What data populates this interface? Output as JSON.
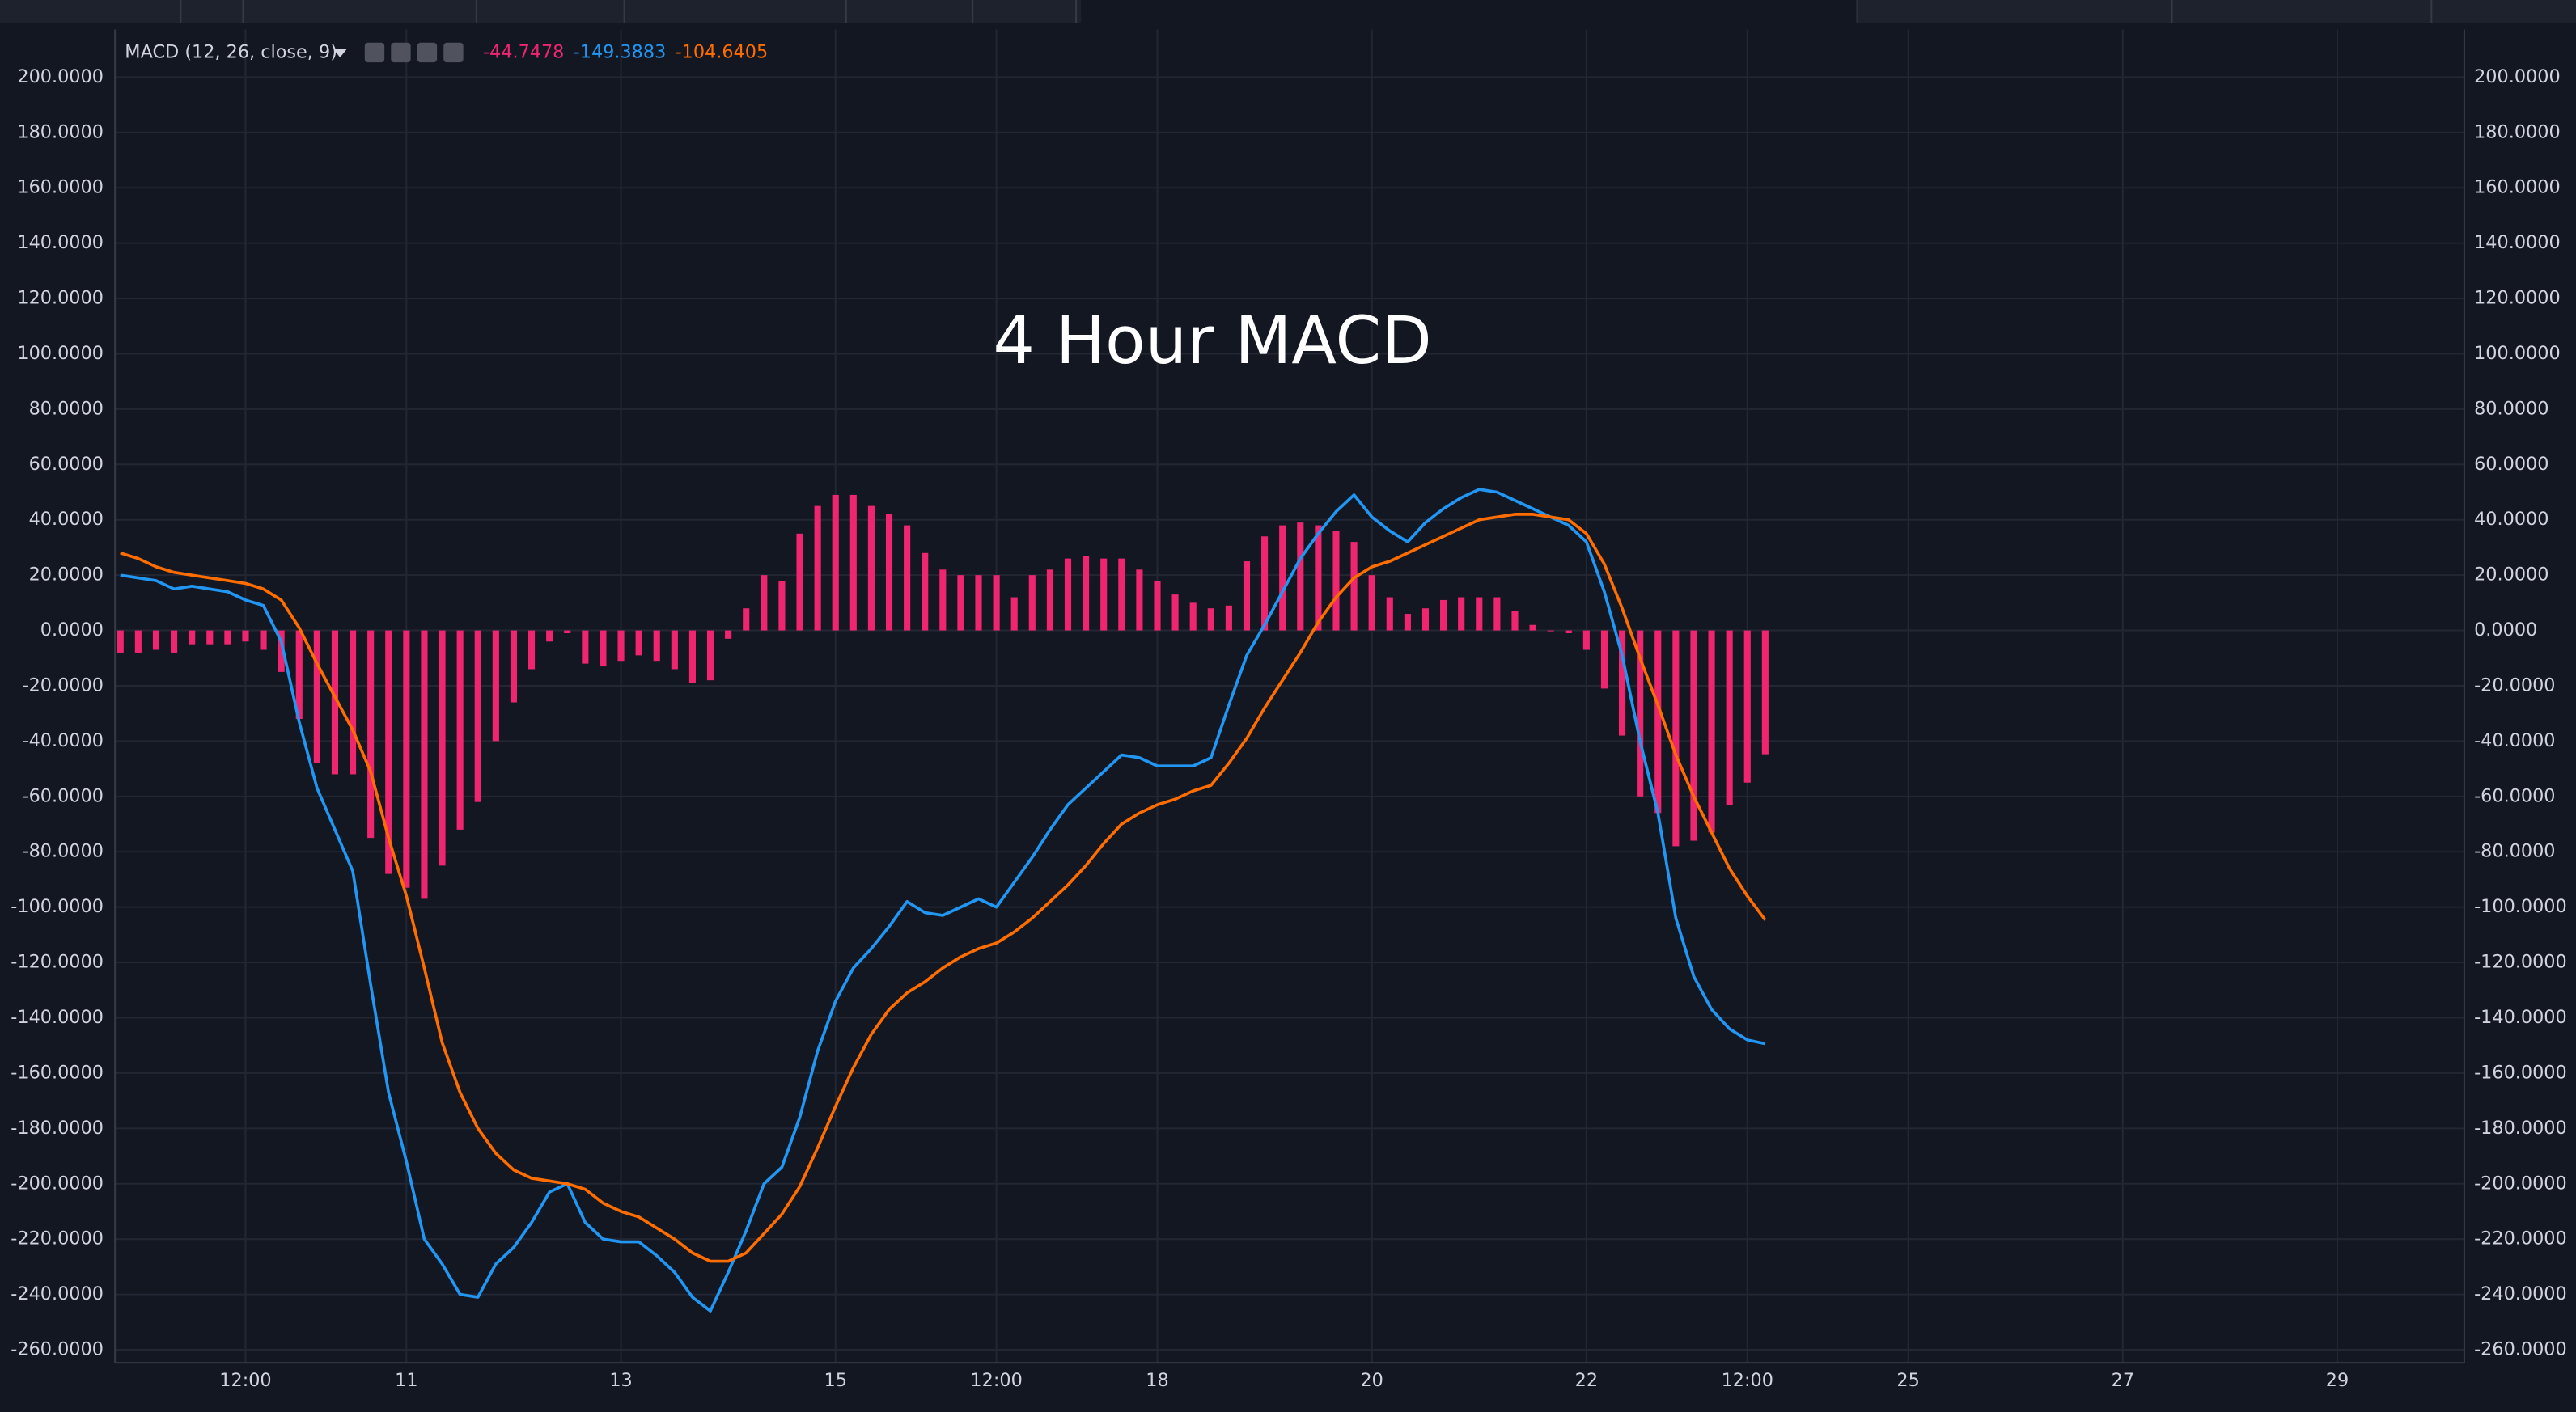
{
  "chart_data": {
    "type": "macd",
    "title": "4 Hour MACD",
    "indicator_label": "MACD (12, 26, close, 9)",
    "xlim": [
      -0.3,
      131.1
    ],
    "xticks": [
      {
        "value": 7,
        "label": "12:00"
      },
      {
        "value": 16,
        "label": "11"
      },
      {
        "value": 28,
        "label": "13"
      },
      {
        "value": 40,
        "label": "15"
      },
      {
        "value": 49,
        "label": "12:00"
      },
      {
        "value": 58,
        "label": "18"
      },
      {
        "value": 70,
        "label": "20"
      },
      {
        "value": 82,
        "label": "22"
      },
      {
        "value": 91,
        "label": "12:00"
      },
      {
        "value": 100,
        "label": "25"
      },
      {
        "value": 112,
        "label": "27"
      },
      {
        "value": 124,
        "label": "29"
      }
    ],
    "ylim": [
      -264.7,
      217.2
    ],
    "yticks": [
      {
        "value": 200,
        "label": "200.0000"
      },
      {
        "value": 180,
        "label": "180.0000"
      },
      {
        "value": 160,
        "label": "160.0000"
      },
      {
        "value": 140,
        "label": "140.0000"
      },
      {
        "value": 120,
        "label": "120.0000"
      },
      {
        "value": 100,
        "label": "100.0000"
      },
      {
        "value": 80,
        "label": "80.0000"
      },
      {
        "value": 60,
        "label": "60.0000"
      },
      {
        "value": 40,
        "label": "40.0000"
      },
      {
        "value": 20,
        "label": "20.0000"
      },
      {
        "value": 0,
        "label": "0.0000"
      },
      {
        "value": -20,
        "label": "-20.0000"
      },
      {
        "value": -40,
        "label": "-40.0000"
      },
      {
        "value": -60,
        "label": "-60.0000"
      },
      {
        "value": -80,
        "label": "-80.0000"
      },
      {
        "value": -100,
        "label": "-100.0000"
      },
      {
        "value": -120,
        "label": "-120.0000"
      },
      {
        "value": -140,
        "label": "-140.0000"
      },
      {
        "value": -160,
        "label": "-160.0000"
      },
      {
        "value": -180,
        "label": "-180.0000"
      },
      {
        "value": -200,
        "label": "-200.0000"
      },
      {
        "value": -220,
        "label": "-220.0000"
      },
      {
        "value": -240,
        "label": "-240.0000"
      },
      {
        "value": -260,
        "label": "-260.0000"
      }
    ],
    "grid": true,
    "series": [
      {
        "type": "bar",
        "color": "#f0256f",
        "values": [
          -8,
          -8,
          -7,
          -8,
          -5,
          -5,
          -5,
          -4,
          -7,
          -15,
          -32,
          -48,
          -52,
          -52,
          -75,
          -88,
          -93,
          -97,
          -85,
          -72,
          -62,
          -40,
          -26,
          -14,
          -4,
          -1,
          -12,
          -13,
          -11,
          -9,
          -11,
          -14,
          -19,
          -18,
          -3,
          8,
          20,
          18,
          35,
          45,
          49,
          49,
          45,
          42,
          38,
          28,
          22,
          20,
          20,
          20,
          12,
          20,
          22,
          26,
          27,
          26,
          26,
          22,
          18,
          13,
          10,
          8,
          9,
          25,
          34,
          38,
          39,
          38,
          36,
          32,
          20,
          12,
          6,
          8,
          11,
          12,
          12,
          12,
          7,
          2,
          0,
          -1,
          -7,
          -21,
          -38,
          -60,
          -66,
          -78,
          -76,
          -73,
          -63,
          -55,
          -44.7478
        ]
      },
      {
        "type": "line",
        "color": "#2196f3",
        "values": [
          20,
          19,
          18,
          15,
          16,
          15,
          14,
          11,
          9,
          -4,
          -33,
          -57,
          -72,
          -87,
          -128,
          -167,
          -192,
          -220,
          -229,
          -240,
          -241,
          -229,
          -223,
          -214,
          -203,
          -200,
          -214,
          -220,
          -221,
          -221,
          -226,
          -232,
          -241,
          -246,
          -232,
          -217,
          -200,
          -194,
          -176,
          -152,
          -134,
          -122,
          -115,
          -107,
          -98,
          -102,
          -103,
          -100,
          -97,
          -100,
          -91,
          -82,
          -72,
          -63,
          -57,
          -51,
          -45,
          -46,
          -49,
          -49,
          -49,
          -46,
          -27,
          -9,
          2,
          14,
          26,
          35,
          43,
          49,
          41,
          36,
          32,
          39,
          44,
          48,
          51,
          50,
          47,
          44,
          41,
          38,
          32,
          14,
          -9,
          -40,
          -66,
          -104,
          -125,
          -137,
          -144,
          -148,
          -149.3883
        ]
      },
      {
        "type": "line",
        "color": "#ff6d00",
        "values": [
          28,
          26,
          23,
          21,
          20,
          19,
          18,
          17,
          15,
          11,
          1,
          -12,
          -24,
          -36,
          -51,
          -75,
          -96,
          -122,
          -149,
          -167,
          -180,
          -189,
          -195,
          -198,
          -199,
          -200,
          -202,
          -207,
          -210,
          -212,
          -216,
          -220,
          -225,
          -228,
          -228,
          -225,
          -218,
          -211,
          -201,
          -187,
          -172,
          -158,
          -146,
          -137,
          -131,
          -127,
          -122,
          -118,
          -115,
          -113,
          -109,
          -104,
          -98,
          -92,
          -85,
          -77,
          -70,
          -66,
          -63,
          -61,
          -58,
          -56,
          -48,
          -39,
          -28,
          -18,
          -8,
          3,
          12,
          19,
          23,
          25,
          28,
          31,
          34,
          37,
          40,
          41,
          42,
          42,
          41,
          40,
          35,
          24,
          8,
          -10,
          -27,
          -45,
          -60,
          -73,
          -86,
          -96,
          -104.6405
        ]
      }
    ]
  }
}
